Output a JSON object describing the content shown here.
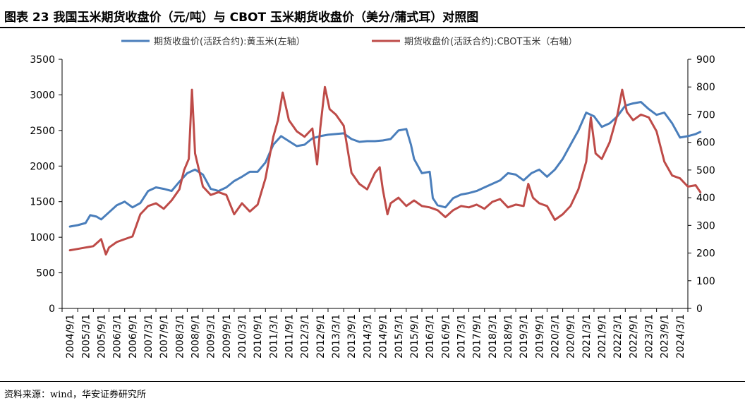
{
  "figure": {
    "title": "图表 23  我国玉米期货收盘价（元/吨）与 CBOT 玉米期货收盘价（美分/蒲式耳）对照图",
    "source": "资料来源：wind，华安证券研究所"
  },
  "colors": {
    "left_series": "#4A7EBB",
    "right_series": "#BE4B48",
    "axis": "#000000",
    "rules": "#000000"
  },
  "chart_data": {
    "type": "line",
    "title": "",
    "legend_position": "top-center",
    "grid": false,
    "x": [
      "2004/9/1",
      "2005/3/1",
      "2005/9/1",
      "2006/3/1",
      "2006/9/1",
      "2007/3/1",
      "2007/9/1",
      "2008/3/1",
      "2008/9/1",
      "2009/3/1",
      "2009/9/1",
      "2010/3/1",
      "2010/9/1",
      "2011/3/1",
      "2011/9/1",
      "2012/3/1",
      "2012/9/1",
      "2013/3/1",
      "2013/9/1",
      "2014/3/1",
      "2014/9/1",
      "2015/3/1",
      "2015/9/1",
      "2016/3/1",
      "2016/9/1",
      "2017/3/1",
      "2017/9/1",
      "2018/3/1",
      "2018/9/1",
      "2019/3/1",
      "2019/9/1",
      "2020/3/1",
      "2020/9/1",
      "2021/3/1",
      "2021/9/1",
      "2022/3/1",
      "2022/9/1",
      "2023/3/1",
      "2023/9/1",
      "2024/3/1"
    ],
    "y_left": {
      "ylim": [
        0,
        3500
      ],
      "ticks": [
        0,
        500,
        1000,
        1500,
        2000,
        2500,
        3000,
        3500
      ]
    },
    "y_right": {
      "ylim": [
        0,
        900
      ],
      "ticks": [
        0,
        100,
        200,
        300,
        400,
        500,
        600,
        700,
        800,
        900
      ]
    },
    "series": [
      {
        "name": "期货收盘价(活跃合约):黄玉米(左轴）",
        "axis": "left",
        "points": [
          [
            0,
            1150
          ],
          [
            0.5,
            1170
          ],
          [
            1,
            1200
          ],
          [
            1.3,
            1310
          ],
          [
            1.7,
            1290
          ],
          [
            2,
            1250
          ],
          [
            2.5,
            1350
          ],
          [
            3,
            1450
          ],
          [
            3.5,
            1500
          ],
          [
            4,
            1420
          ],
          [
            4.5,
            1480
          ],
          [
            5,
            1650
          ],
          [
            5.5,
            1700
          ],
          [
            6,
            1680
          ],
          [
            6.5,
            1650
          ],
          [
            7,
            1780
          ],
          [
            7.5,
            1900
          ],
          [
            8,
            1950
          ],
          [
            8.5,
            1880
          ],
          [
            9,
            1680
          ],
          [
            9.5,
            1650
          ],
          [
            10,
            1700
          ],
          [
            10.5,
            1790
          ],
          [
            11,
            1850
          ],
          [
            11.5,
            1920
          ],
          [
            12,
            1920
          ],
          [
            12.5,
            2050
          ],
          [
            13,
            2300
          ],
          [
            13.5,
            2420
          ],
          [
            14,
            2350
          ],
          [
            14.5,
            2280
          ],
          [
            15,
            2300
          ],
          [
            15.5,
            2390
          ],
          [
            16,
            2420
          ],
          [
            16.5,
            2440
          ],
          [
            17,
            2450
          ],
          [
            17.5,
            2460
          ],
          [
            18,
            2380
          ],
          [
            18.5,
            2340
          ],
          [
            19,
            2350
          ],
          [
            19.5,
            2350
          ],
          [
            20,
            2360
          ],
          [
            20.5,
            2380
          ],
          [
            21,
            2500
          ],
          [
            21.5,
            2520
          ],
          [
            21.8,
            2300
          ],
          [
            22,
            2100
          ],
          [
            22.5,
            1900
          ],
          [
            23,
            1920
          ],
          [
            23.2,
            1550
          ],
          [
            23.5,
            1450
          ],
          [
            24,
            1420
          ],
          [
            24.5,
            1550
          ],
          [
            25,
            1600
          ],
          [
            25.5,
            1620
          ],
          [
            26,
            1650
          ],
          [
            26.5,
            1700
          ],
          [
            27,
            1750
          ],
          [
            27.5,
            1800
          ],
          [
            28,
            1900
          ],
          [
            28.5,
            1880
          ],
          [
            29,
            1800
          ],
          [
            29.5,
            1900
          ],
          [
            30,
            1950
          ],
          [
            30.5,
            1850
          ],
          [
            31,
            1950
          ],
          [
            31.5,
            2100
          ],
          [
            32,
            2300
          ],
          [
            32.5,
            2500
          ],
          [
            33,
            2750
          ],
          [
            33.5,
            2700
          ],
          [
            34,
            2550
          ],
          [
            34.5,
            2600
          ],
          [
            35,
            2700
          ],
          [
            35.5,
            2850
          ],
          [
            36,
            2880
          ],
          [
            36.5,
            2900
          ],
          [
            37,
            2800
          ],
          [
            37.5,
            2720
          ],
          [
            38,
            2750
          ],
          [
            38.5,
            2600
          ],
          [
            39,
            2400
          ],
          [
            39.5,
            2420
          ],
          [
            40,
            2450
          ],
          [
            40.3,
            2480
          ]
        ]
      },
      {
        "name": "期货收盘价(活跃合约):CBOT玉米（右轴）",
        "axis": "right",
        "points": [
          [
            0,
            210
          ],
          [
            0.5,
            215
          ],
          [
            1,
            220
          ],
          [
            1.5,
            225
          ],
          [
            2,
            250
          ],
          [
            2.3,
            195
          ],
          [
            2.5,
            220
          ],
          [
            3,
            240
          ],
          [
            3.5,
            250
          ],
          [
            4,
            260
          ],
          [
            4.5,
            340
          ],
          [
            5,
            370
          ],
          [
            5.5,
            380
          ],
          [
            6,
            360
          ],
          [
            6.5,
            390
          ],
          [
            7,
            430
          ],
          [
            7.3,
            500
          ],
          [
            7.6,
            540
          ],
          [
            7.8,
            790
          ],
          [
            8,
            560
          ],
          [
            8.5,
            440
          ],
          [
            9,
            410
          ],
          [
            9.5,
            420
          ],
          [
            10,
            410
          ],
          [
            10.5,
            340
          ],
          [
            11,
            380
          ],
          [
            11.5,
            350
          ],
          [
            12,
            375
          ],
          [
            12.5,
            470
          ],
          [
            13,
            620
          ],
          [
            13.3,
            680
          ],
          [
            13.6,
            780
          ],
          [
            14,
            680
          ],
          [
            14.5,
            640
          ],
          [
            15,
            620
          ],
          [
            15.5,
            650
          ],
          [
            15.8,
            520
          ],
          [
            16,
            650
          ],
          [
            16.3,
            800
          ],
          [
            16.6,
            720
          ],
          [
            17,
            700
          ],
          [
            17.5,
            660
          ],
          [
            18,
            490
          ],
          [
            18.5,
            450
          ],
          [
            19,
            430
          ],
          [
            19.5,
            490
          ],
          [
            19.8,
            510
          ],
          [
            20,
            430
          ],
          [
            20.3,
            340
          ],
          [
            20.5,
            380
          ],
          [
            21,
            400
          ],
          [
            21.5,
            370
          ],
          [
            22,
            390
          ],
          [
            22.5,
            370
          ],
          [
            23,
            365
          ],
          [
            23.5,
            355
          ],
          [
            24,
            330
          ],
          [
            24.5,
            355
          ],
          [
            25,
            370
          ],
          [
            25.5,
            365
          ],
          [
            26,
            375
          ],
          [
            26.5,
            360
          ],
          [
            27,
            385
          ],
          [
            27.5,
            395
          ],
          [
            28,
            365
          ],
          [
            28.5,
            375
          ],
          [
            29,
            370
          ],
          [
            29.3,
            450
          ],
          [
            29.6,
            400
          ],
          [
            30,
            380
          ],
          [
            30.5,
            370
          ],
          [
            31,
            320
          ],
          [
            31.5,
            340
          ],
          [
            32,
            370
          ],
          [
            32.5,
            430
          ],
          [
            33,
            530
          ],
          [
            33.3,
            690
          ],
          [
            33.6,
            560
          ],
          [
            34,
            540
          ],
          [
            34.5,
            600
          ],
          [
            35,
            700
          ],
          [
            35.3,
            790
          ],
          [
            35.6,
            710
          ],
          [
            36,
            680
          ],
          [
            36.5,
            700
          ],
          [
            37,
            690
          ],
          [
            37.5,
            640
          ],
          [
            38,
            530
          ],
          [
            38.5,
            480
          ],
          [
            39,
            470
          ],
          [
            39.5,
            440
          ],
          [
            40,
            445
          ],
          [
            40.3,
            420
          ]
        ]
      }
    ]
  }
}
